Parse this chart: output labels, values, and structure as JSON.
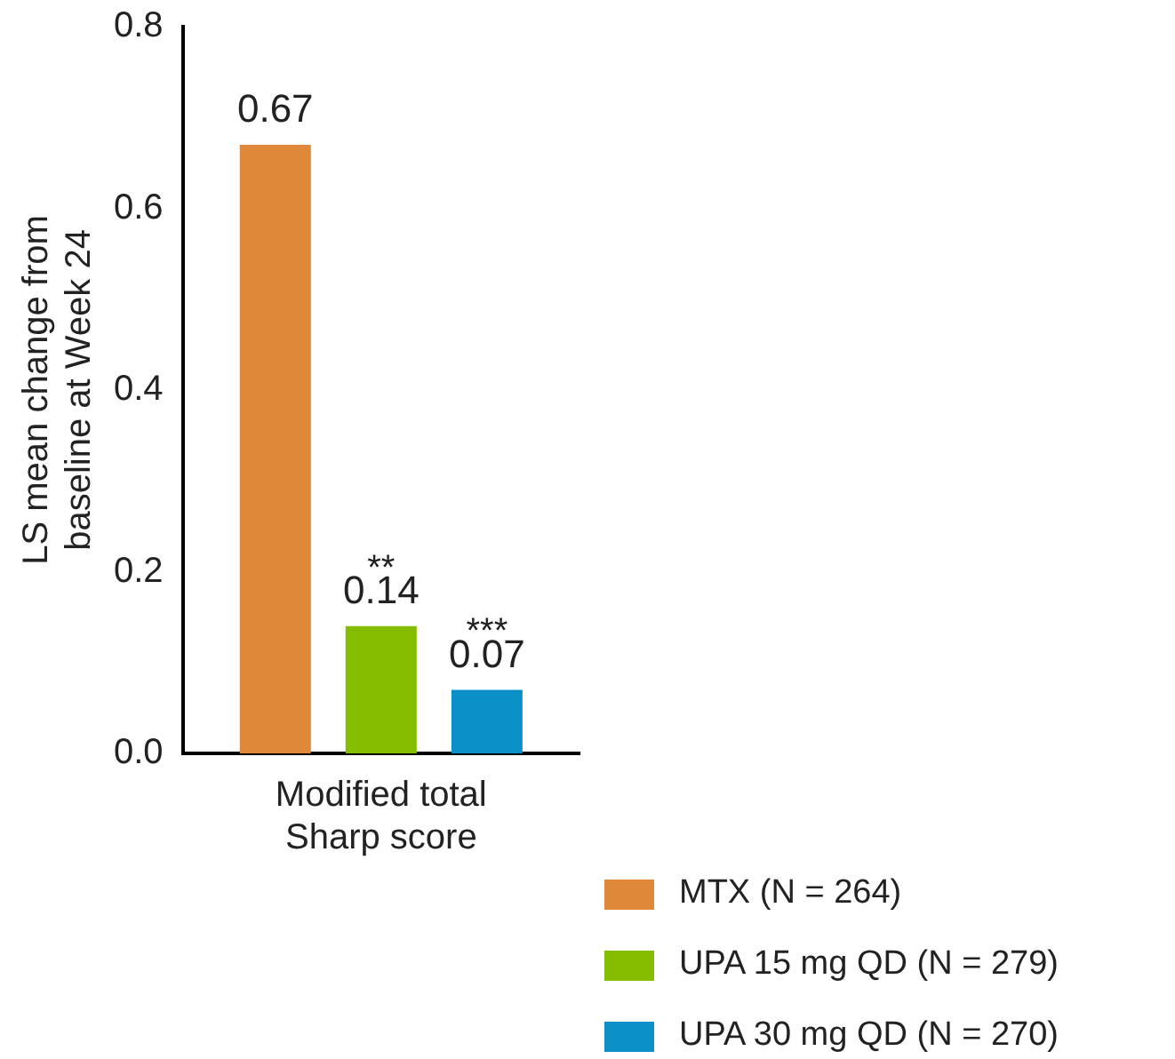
{
  "chart_data": {
    "type": "bar",
    "ylabel": "LS mean change from baseline at Week 24",
    "categories": [
      "Modified total Sharp score"
    ],
    "series": [
      {
        "name": "MTX (N = 264)",
        "color": "#e0883a",
        "values": [
          0.67
        ]
      },
      {
        "name": "UPA 15 mg QD (N = 279)",
        "color": "#84bd00",
        "values": [
          0.14
        ]
      },
      {
        "name": "UPA 30 mg QD (N = 270)",
        "color": "#0a8fc6",
        "values": [
          0.07
        ]
      }
    ],
    "ylim": [
      0,
      0.8
    ],
    "yticks": [
      {
        "value": 0,
        "label": "0.0"
      },
      {
        "value": 0.2,
        "label": "0.2"
      },
      {
        "value": 0.4,
        "label": "0.4"
      },
      {
        "value": 0.6,
        "label": "0.6"
      },
      {
        "value": 0.8,
        "label": "0.8"
      }
    ],
    "annotations": [
      "**",
      "***"
    ],
    "data_labels": true,
    "grid": false,
    "legend": "bottom right"
  }
}
